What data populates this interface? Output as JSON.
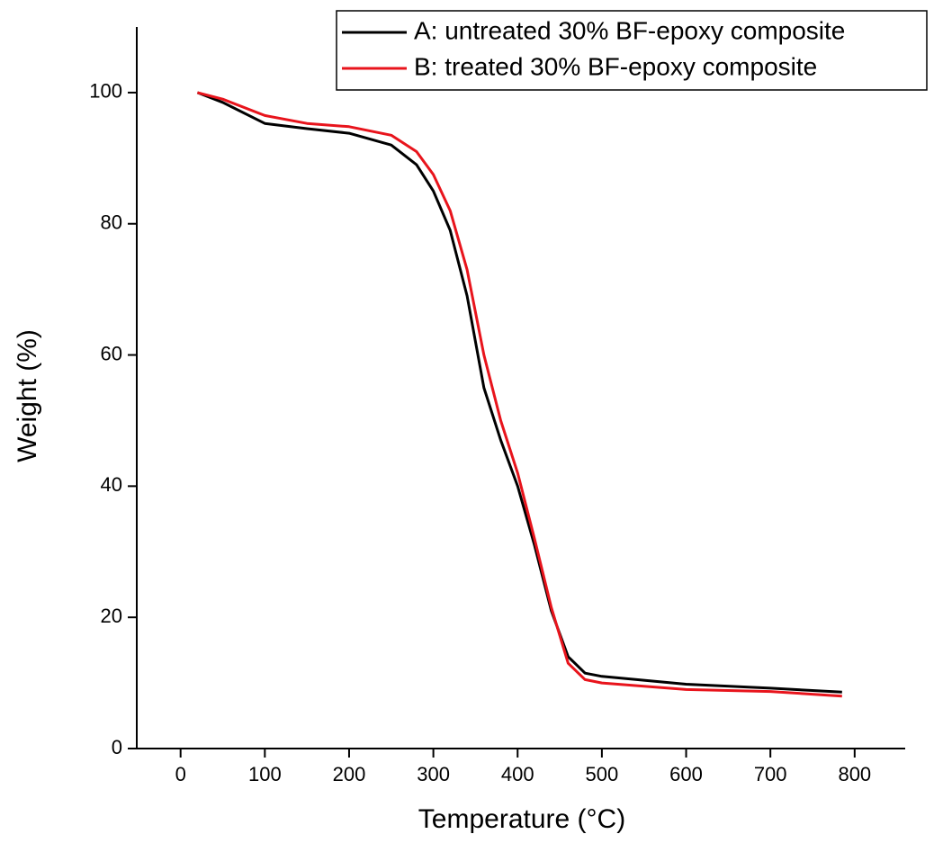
{
  "chart_data": {
    "type": "line",
    "xlabel": "Temperature (°C)",
    "ylabel": "Weight (%)",
    "xlim": [
      -52,
      860
    ],
    "ylim": [
      0,
      110
    ],
    "xticks": [
      0,
      100,
      200,
      300,
      400,
      500,
      600,
      700,
      800
    ],
    "yticks": [
      0,
      20,
      40,
      60,
      80,
      100
    ],
    "legend": "upper right",
    "grid": false,
    "series": [
      {
        "name": "A: untreated 30% BF-epoxy composite",
        "color": "#000000",
        "x": [
          20,
          50,
          100,
          150,
          200,
          250,
          280,
          300,
          320,
          340,
          360,
          380,
          400,
          420,
          440,
          460,
          480,
          500,
          600,
          700,
          785
        ],
        "values": [
          100,
          98.5,
          95.3,
          94.5,
          93.8,
          92,
          89,
          85,
          79,
          69,
          55,
          47,
          40,
          31,
          21,
          14,
          11.5,
          11,
          9.8,
          9.2,
          8.6
        ]
      },
      {
        "name": "B: treated 30% BF-epoxy composite",
        "color": "#e8141c",
        "x": [
          20,
          50,
          100,
          150,
          200,
          250,
          280,
          300,
          320,
          340,
          360,
          380,
          400,
          420,
          440,
          460,
          480,
          500,
          600,
          700,
          785
        ],
        "values": [
          100,
          99,
          96.5,
          95.3,
          94.8,
          93.5,
          91,
          87.5,
          82,
          73,
          60,
          50,
          42,
          32,
          21.5,
          13,
          10.5,
          10,
          9,
          8.7,
          8
        ]
      }
    ]
  }
}
